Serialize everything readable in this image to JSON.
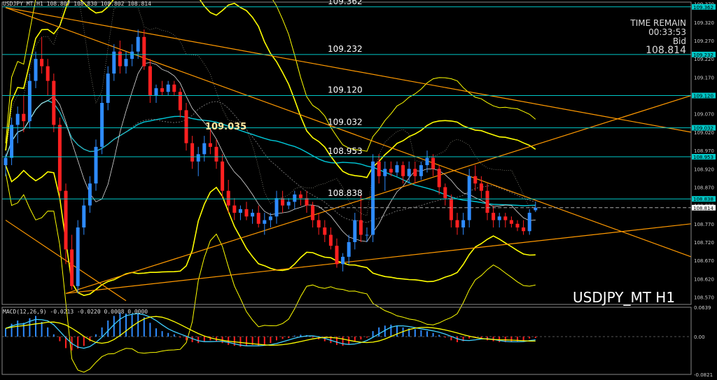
{
  "header": {
    "symbol_line": "USDJPY_MT,H1",
    "ohlc": "108.807 108.830 108.802 108.814"
  },
  "time_remain": {
    "label": "TIME REMAIN",
    "value": "00:33:53",
    "bid_label": "Bid",
    "bid_value": "108.814"
  },
  "watermark": "USDJPY_MT H1",
  "colors": {
    "bull": "#2e8bff",
    "bear": "#ff2020",
    "level": "#00c8c8",
    "band": "#ffff00",
    "trend": "#ff9900",
    "ma_cyan": "#00c8d8",
    "macd_line": "#40d0ff",
    "signal_line": "#ffff00"
  },
  "chart_data": [
    {
      "type": "candlestick",
      "title": "USDJPY_MT H1",
      "ylim": [
        108.55,
        109.375
      ],
      "y_ticks": [
        "109.370",
        "109.320",
        "109.270",
        "109.220",
        "109.170",
        "109.120",
        "109.070",
        "109.020",
        "108.970",
        "108.920",
        "108.870",
        "108.820",
        "108.770",
        "108.720",
        "108.670",
        "108.620",
        "108.570"
      ],
      "levels": [
        {
          "value": 109.362,
          "label": "109.362",
          "tag": "109.362"
        },
        {
          "value": 109.232,
          "label": "109.232",
          "tag": "109.232"
        },
        {
          "value": 109.12,
          "label": "109.120",
          "tag": "109.120"
        },
        {
          "value": 109.032,
          "label": "109.032",
          "tag": "109.032"
        },
        {
          "value": 108.953,
          "label": "108.953",
          "tag": "108.953"
        },
        {
          "value": 108.838,
          "label": "108.838",
          "tag": "108.838"
        }
      ],
      "annotation": {
        "label": "109.035",
        "value": 109.035
      },
      "current_price": {
        "value": 108.814,
        "label": "108.814"
      },
      "candles": [
        [
          108.93,
          108.96,
          108.9,
          108.95
        ],
        [
          108.95,
          109.06,
          108.93,
          109.04
        ],
        [
          109.04,
          109.09,
          108.99,
          109.07
        ],
        [
          109.07,
          109.12,
          109.02,
          109.05
        ],
        [
          109.05,
          109.18,
          109.03,
          109.16
        ],
        [
          109.16,
          109.24,
          109.14,
          109.22
        ],
        [
          109.22,
          109.28,
          109.18,
          109.2
        ],
        [
          109.2,
          109.22,
          109.12,
          109.16
        ],
        [
          109.16,
          109.18,
          109.02,
          109.04
        ],
        [
          109.04,
          109.06,
          108.84,
          108.86
        ],
        [
          108.86,
          108.88,
          108.66,
          108.7
        ],
        [
          108.7,
          108.74,
          108.59,
          108.6
        ],
        [
          108.6,
          108.78,
          108.58,
          108.76
        ],
        [
          108.76,
          108.84,
          108.74,
          108.82
        ],
        [
          108.82,
          108.9,
          108.8,
          108.88
        ],
        [
          108.88,
          109.0,
          108.86,
          108.98
        ],
        [
          108.98,
          109.12,
          108.96,
          109.1
        ],
        [
          109.1,
          109.2,
          109.08,
          109.18
        ],
        [
          109.18,
          109.26,
          109.16,
          109.24
        ],
        [
          109.24,
          109.27,
          109.18,
          109.2
        ],
        [
          109.2,
          109.24,
          109.18,
          109.22
        ],
        [
          109.22,
          109.26,
          109.2,
          109.24
        ],
        [
          109.24,
          109.3,
          109.22,
          109.28
        ],
        [
          109.28,
          109.3,
          109.19,
          109.2
        ],
        [
          109.2,
          109.22,
          109.1,
          109.12
        ],
        [
          109.12,
          109.15,
          109.1,
          109.14
        ],
        [
          109.14,
          109.16,
          109.12,
          109.13
        ],
        [
          109.13,
          109.16,
          109.12,
          109.15
        ],
        [
          109.15,
          109.16,
          109.12,
          109.13
        ],
        [
          109.13,
          109.14,
          109.06,
          109.08
        ],
        [
          109.08,
          109.1,
          108.97,
          108.99
        ],
        [
          108.99,
          109.01,
          108.92,
          108.94
        ],
        [
          108.94,
          108.98,
          108.9,
          108.96
        ],
        [
          108.96,
          109.01,
          108.94,
          108.99
        ],
        [
          108.99,
          109.03,
          108.96,
          108.98
        ],
        [
          108.98,
          109.0,
          108.92,
          108.94
        ],
        [
          108.94,
          108.96,
          108.84,
          108.86
        ],
        [
          108.86,
          108.89,
          108.8,
          108.82
        ],
        [
          108.82,
          108.84,
          108.78,
          108.8
        ],
        [
          108.8,
          108.82,
          108.78,
          108.81
        ],
        [
          108.81,
          108.83,
          108.78,
          108.79
        ],
        [
          108.79,
          108.81,
          108.77,
          108.8
        ],
        [
          108.8,
          108.82,
          108.76,
          108.77
        ],
        [
          108.77,
          108.8,
          108.74,
          108.78
        ],
        [
          108.78,
          108.8,
          108.76,
          108.79
        ],
        [
          108.79,
          108.86,
          108.77,
          108.84
        ],
        [
          108.84,
          108.86,
          108.8,
          108.82
        ],
        [
          108.82,
          108.84,
          108.81,
          108.83
        ],
        [
          108.83,
          108.86,
          108.81,
          108.85
        ],
        [
          108.85,
          108.86,
          108.82,
          108.84
        ],
        [
          108.84,
          108.86,
          108.8,
          108.82
        ],
        [
          108.82,
          108.83,
          108.76,
          108.78
        ],
        [
          108.78,
          108.8,
          108.74,
          108.76
        ],
        [
          108.76,
          108.78,
          108.72,
          108.74
        ],
        [
          108.74,
          108.76,
          108.7,
          108.71
        ],
        [
          108.71,
          108.73,
          108.65,
          108.66
        ],
        [
          108.66,
          108.69,
          108.64,
          108.68
        ],
        [
          108.68,
          108.74,
          108.66,
          108.72
        ],
        [
          108.72,
          108.8,
          108.7,
          108.78
        ],
        [
          108.78,
          108.85,
          108.72,
          108.74
        ],
        [
          108.74,
          108.76,
          108.72,
          108.74
        ],
        [
          108.74,
          108.96,
          108.72,
          108.94
        ],
        [
          108.94,
          108.96,
          108.88,
          108.9
        ],
        [
          108.9,
          108.94,
          108.86,
          108.92
        ],
        [
          108.92,
          108.94,
          108.9,
          108.91
        ],
        [
          108.91,
          108.94,
          108.9,
          108.93
        ],
        [
          108.93,
          108.94,
          108.88,
          108.9
        ],
        [
          108.9,
          108.94,
          108.88,
          108.92
        ],
        [
          108.92,
          108.94,
          108.88,
          108.9
        ],
        [
          108.9,
          108.94,
          108.89,
          108.93
        ],
        [
          108.93,
          108.97,
          108.91,
          108.95
        ],
        [
          108.95,
          108.96,
          108.9,
          108.92
        ],
        [
          108.92,
          108.93,
          108.85,
          108.87
        ],
        [
          108.87,
          108.88,
          108.82,
          108.84
        ],
        [
          108.84,
          108.85,
          108.76,
          108.78
        ],
        [
          108.78,
          108.8,
          108.74,
          108.76
        ],
        [
          108.76,
          108.8,
          108.74,
          108.78
        ],
        [
          108.78,
          108.92,
          108.76,
          108.9
        ],
        [
          108.9,
          108.93,
          108.86,
          108.88
        ],
        [
          108.88,
          108.9,
          108.84,
          108.86
        ],
        [
          108.86,
          108.88,
          108.78,
          108.8
        ],
        [
          108.8,
          108.82,
          108.76,
          108.78
        ],
        [
          108.78,
          108.8,
          108.76,
          108.79
        ],
        [
          108.79,
          108.8,
          108.76,
          108.78
        ],
        [
          108.78,
          108.79,
          108.76,
          108.77
        ],
        [
          108.77,
          108.78,
          108.75,
          108.76
        ],
        [
          108.76,
          108.78,
          108.74,
          108.75
        ],
        [
          108.75,
          108.81,
          108.74,
          108.8
        ],
        [
          108.807,
          108.83,
          108.802,
          108.814
        ]
      ]
    },
    {
      "type": "bar",
      "title": "MACD(12,26,9)",
      "header": "MACD(12,26,9) -0.0213 -0.0220 0.0008 0.0000",
      "y_ticks": [
        "0.0639",
        "0.00",
        "-0.0821"
      ],
      "ylim": [
        -0.0821,
        0.0639
      ],
      "histogram": [
        0.018,
        0.028,
        0.035,
        0.03,
        0.04,
        0.045,
        0.032,
        0.02,
        0.005,
        -0.01,
        -0.025,
        -0.03,
        -0.026,
        -0.02,
        -0.01,
        0.005,
        0.02,
        0.035,
        0.045,
        0.052,
        0.05,
        0.048,
        0.05,
        0.042,
        0.03,
        0.018,
        0.012,
        0.008,
        0.005,
        -0.002,
        -0.008,
        -0.012,
        -0.014,
        -0.01,
        -0.008,
        -0.01,
        -0.014,
        -0.018,
        -0.02,
        -0.022,
        -0.02,
        -0.018,
        -0.02,
        -0.018,
        -0.014,
        -0.008,
        -0.005,
        -0.003,
        0.002,
        0.004,
        0.003,
        -0.002,
        -0.006,
        -0.01,
        -0.014,
        -0.018,
        -0.02,
        -0.016,
        -0.01,
        -0.006,
        -0.002,
        0.012,
        0.02,
        0.024,
        0.026,
        0.024,
        0.02,
        0.018,
        0.016,
        0.014,
        0.012,
        0.008,
        0.004,
        -0.002,
        -0.008,
        -0.012,
        -0.01,
        -0.004,
        -0.002,
        -0.004,
        -0.008,
        -0.01,
        -0.012,
        -0.012,
        -0.011,
        -0.01,
        -0.01,
        -0.004,
        -0.003
      ]
    }
  ]
}
